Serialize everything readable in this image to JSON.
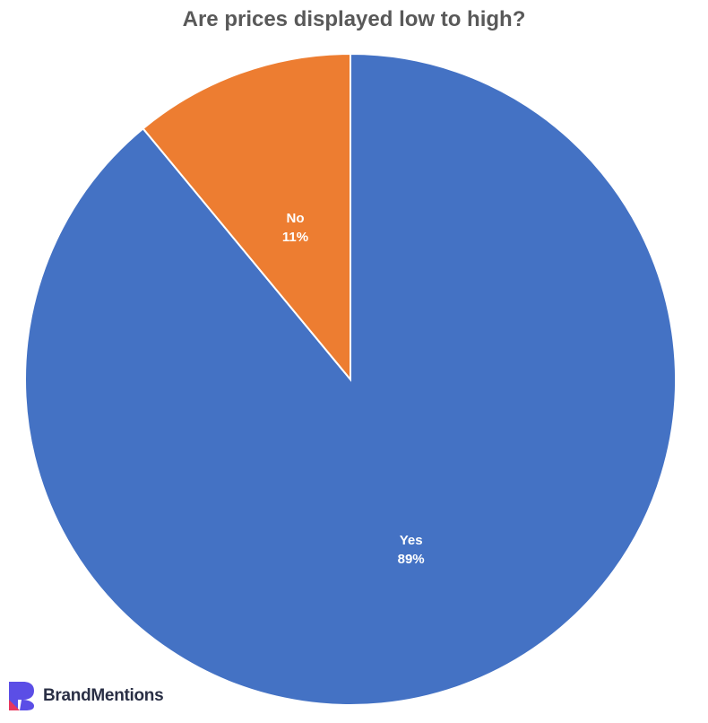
{
  "chart_data": {
    "type": "pie",
    "title": "Are prices displayed low to high?",
    "slices": [
      {
        "label": "Yes",
        "value": 89,
        "display": "89%",
        "color": "#4472C4"
      },
      {
        "label": "No",
        "value": 11,
        "display": "11%",
        "color": "#ED7D31"
      }
    ],
    "start": "12 o'clock, clockwise",
    "legend": "none"
  },
  "brand": {
    "name": "BrandMentions",
    "logo_icon": "brandmentions-logo-icon",
    "colors": [
      "#5b4ee6",
      "#e8365d"
    ]
  }
}
